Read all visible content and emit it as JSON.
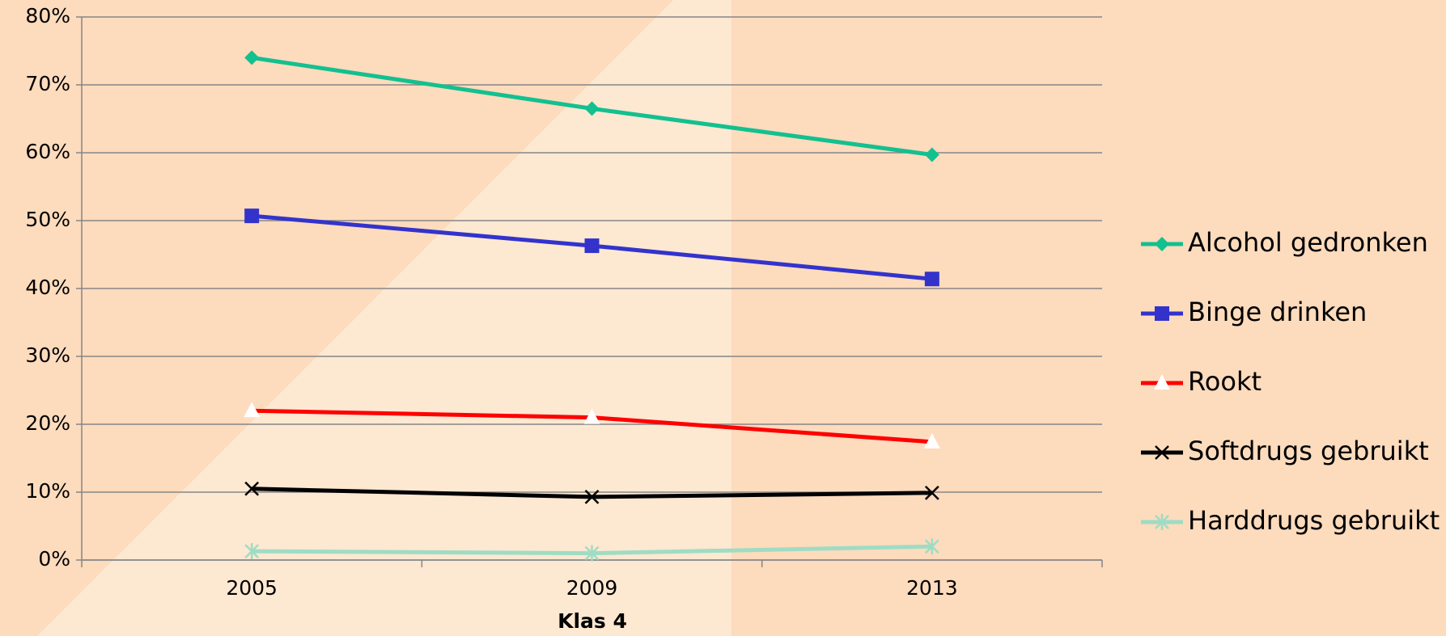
{
  "chart_data": {
    "type": "line",
    "x_label": "Klas 4",
    "categories": [
      "2005",
      "2009",
      "2013"
    ],
    "series": [
      {
        "name": "Alcohol gedronken",
        "color": "#13c08f",
        "marker": "diamond",
        "values": [
          74,
          66.5,
          59.7
        ]
      },
      {
        "name": "Binge drinken",
        "color": "#3333cc",
        "marker": "square",
        "values": [
          50.7,
          46.3,
          41.4
        ]
      },
      {
        "name": "Rookt",
        "color": "#ff0000",
        "marker": "triangle",
        "values": [
          22,
          21,
          17.4
        ]
      },
      {
        "name": "Softdrugs gebruikt",
        "color": "#000000",
        "marker": "x",
        "values": [
          10.5,
          9.3,
          9.9
        ]
      },
      {
        "name": "Harddrugs gebruikt",
        "color": "#9fdcc4",
        "marker": "asterisk",
        "values": [
          1.3,
          1.0,
          2.0
        ]
      }
    ],
    "ylim": [
      0,
      80
    ],
    "yticks": [
      {
        "value": 0,
        "label": "0%"
      },
      {
        "value": 10,
        "label": "10%"
      },
      {
        "value": 20,
        "label": "20%"
      },
      {
        "value": 30,
        "label": "30%"
      },
      {
        "value": 40,
        "label": "40%"
      },
      {
        "value": 50,
        "label": "50%"
      },
      {
        "value": 60,
        "label": "60%"
      },
      {
        "value": 70,
        "label": "70%"
      },
      {
        "value": 80,
        "label": "80%"
      }
    ],
    "grid": true,
    "legend": "right"
  }
}
